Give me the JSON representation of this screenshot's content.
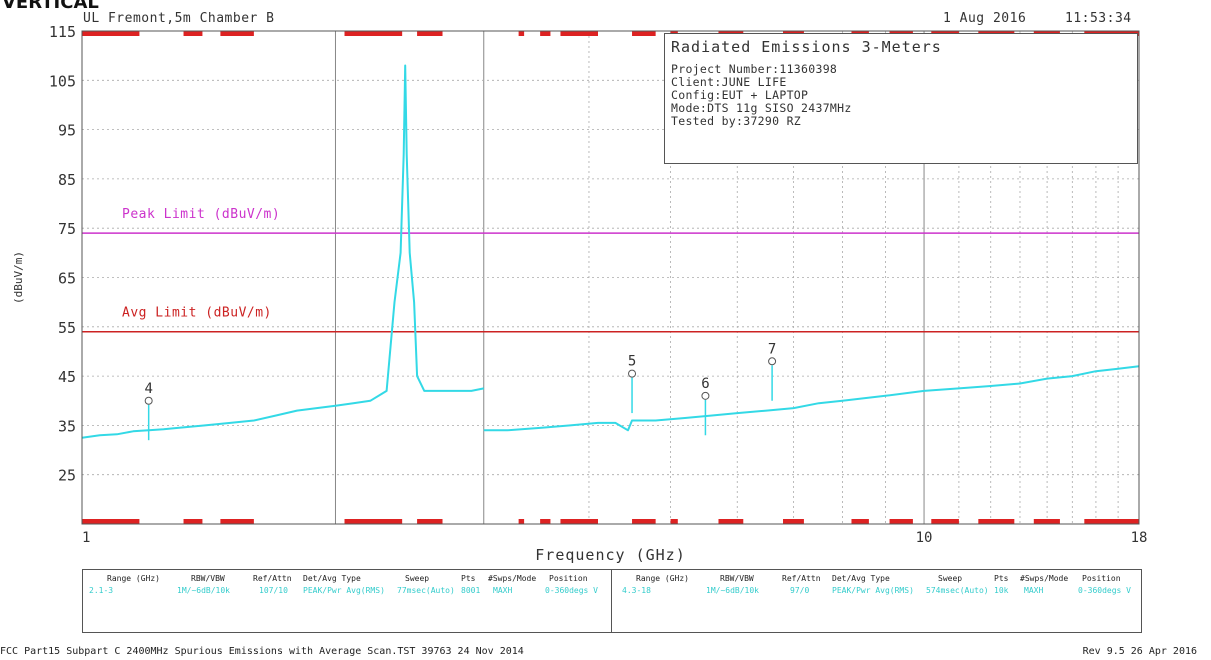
{
  "header": {
    "top_label": "VERTICAL",
    "location": "UL Fremont,5m Chamber B",
    "date": "1 Aug 2016",
    "time": "11:53:34"
  },
  "info_box": {
    "title": "Radiated Emissions 3-Meters",
    "project": "Project Number:11360398",
    "client": "Client:JUNE LIFE",
    "config": "Config:EUT + LAPTOP",
    "mode": "Mode:DTS 11g SISO 2437MHz",
    "tested_by": "Tested by:37290 RZ"
  },
  "chart_data": {
    "type": "line",
    "xscale": "log",
    "xlim": [
      1,
      18
    ],
    "ylim": [
      15,
      115
    ],
    "xlabel": "Frequency (GHz)",
    "ylabel": "(dBuV/m)",
    "yticks": [
      115,
      105,
      95,
      85,
      75,
      65,
      55,
      45,
      35,
      25
    ],
    "xtick_labels": [
      {
        "value": 1,
        "label": "1"
      },
      {
        "value": 10,
        "label": "10"
      },
      {
        "value": 18,
        "label": "18"
      }
    ],
    "colors": {
      "trace": "#33d9e6",
      "peak_limit": "#cc33cc",
      "avg_limit": "#cc2222",
      "scan_bar": "#dd2222",
      "grid": "#999999"
    },
    "limits": [
      {
        "name": "Peak Limit (dBuV/m)",
        "value": 74
      },
      {
        "name": "Avg Limit (dBuV/m)",
        "value": 54
      }
    ],
    "series": [
      {
        "points": [
          [
            1.0,
            32.5
          ],
          [
            1.05,
            33.0
          ],
          [
            1.1,
            33.2
          ],
          [
            1.15,
            33.8
          ],
          [
            1.2,
            34.0
          ],
          [
            1.25,
            34.2
          ],
          [
            1.3,
            34.5
          ],
          [
            1.4,
            35.0
          ],
          [
            1.5,
            35.5
          ],
          [
            1.6,
            36.0
          ],
          [
            1.7,
            37.0
          ],
          [
            1.8,
            38.0
          ],
          [
            1.9,
            38.5
          ],
          [
            2.0,
            39.0
          ],
          [
            2.1,
            39.5
          ],
          [
            2.2,
            40.0
          ],
          [
            2.3,
            42.0
          ],
          [
            2.35,
            60.0
          ],
          [
            2.39,
            70.0
          ],
          [
            2.41,
            90.0
          ],
          [
            2.42,
            108.0
          ],
          [
            2.43,
            90.0
          ],
          [
            2.45,
            70.0
          ],
          [
            2.48,
            60.0
          ],
          [
            2.5,
            45.0
          ],
          [
            2.55,
            42.0
          ],
          [
            2.7,
            42.0
          ],
          [
            2.9,
            42.0
          ],
          [
            3.0,
            42.5
          ]
        ]
      },
      {
        "points": [
          [
            3.0,
            34.0
          ],
          [
            3.2,
            34.0
          ],
          [
            3.5,
            34.5
          ],
          [
            3.8,
            35.0
          ],
          [
            4.1,
            35.5
          ],
          [
            4.3,
            35.5
          ],
          [
            4.45,
            34.0
          ],
          [
            4.5,
            36.0
          ],
          [
            4.8,
            36.0
          ],
          [
            5.2,
            36.5
          ],
          [
            5.6,
            37.0
          ],
          [
            6.0,
            37.5
          ],
          [
            6.5,
            38.0
          ],
          [
            7.0,
            38.5
          ],
          [
            7.5,
            39.5
          ],
          [
            8.0,
            40.0
          ],
          [
            9.0,
            41.0
          ],
          [
            10.0,
            42.0
          ],
          [
            11.0,
            42.5
          ],
          [
            12.0,
            43.0
          ],
          [
            13.0,
            43.5
          ],
          [
            14.0,
            44.5
          ],
          [
            15.0,
            45.0
          ],
          [
            16.0,
            46.0
          ],
          [
            17.0,
            46.5
          ],
          [
            18.0,
            47.0
          ]
        ]
      }
    ],
    "markers": [
      {
        "label": "4",
        "x": 1.2,
        "y": 40
      },
      {
        "label": "5",
        "x": 4.5,
        "y": 45.5
      },
      {
        "label": "6",
        "x": 5.5,
        "y": 41
      },
      {
        "label": "7",
        "x": 6.6,
        "y": 48
      }
    ],
    "scan_bars_top": [
      [
        1.0,
        1.17
      ],
      [
        1.32,
        1.39
      ],
      [
        1.46,
        1.6
      ],
      [
        2.05,
        2.4
      ],
      [
        2.5,
        2.68
      ],
      [
        3.3,
        3.35
      ],
      [
        3.5,
        3.6
      ],
      [
        3.7,
        4.1
      ],
      [
        4.5,
        4.8
      ],
      [
        5.0,
        5.1
      ],
      [
        5.7,
        6.1
      ],
      [
        6.8,
        7.2
      ],
      [
        8.2,
        8.6
      ],
      [
        9.1,
        9.7
      ],
      [
        10.2,
        11.0
      ],
      [
        11.6,
        12.8
      ],
      [
        13.5,
        14.5
      ],
      [
        15.5,
        18.0
      ]
    ],
    "scan_bars_bottom": [
      [
        1.0,
        1.17
      ],
      [
        1.32,
        1.39
      ],
      [
        1.46,
        1.6
      ],
      [
        2.05,
        2.4
      ],
      [
        2.5,
        2.68
      ],
      [
        3.3,
        3.35
      ],
      [
        3.5,
        3.6
      ],
      [
        3.7,
        4.1
      ],
      [
        4.5,
        4.8
      ],
      [
        5.0,
        5.1
      ],
      [
        5.7,
        6.1
      ],
      [
        6.8,
        7.2
      ],
      [
        8.2,
        8.6
      ],
      [
        9.1,
        9.7
      ],
      [
        10.2,
        11.0
      ],
      [
        11.6,
        12.8
      ],
      [
        13.5,
        14.5
      ],
      [
        15.5,
        18.0
      ]
    ]
  },
  "settings_table": {
    "headers": [
      "Range (GHz)",
      "RBW/VBW",
      "Ref/Attn",
      "Det/Avg Type",
      "Sweep",
      "Pts",
      "#Swps/Mode",
      "Position"
    ],
    "row_left": [
      "2.1-3",
      "1M/~6dB/10k",
      "107/10",
      "PEAK/Pwr Avg(RMS)",
      "77msec(Auto)",
      "8001",
      "MAXH",
      "0-360degs V"
    ],
    "row_right": [
      "4.3-18",
      "1M/~6dB/10k",
      "97/0",
      "PEAK/Pwr Avg(RMS)",
      "574msec(Auto)",
      "10k",
      "MAXH",
      "0-360degs V"
    ]
  },
  "footer": {
    "left": "FCC Part15 Subpart C 2400MHz Spurious Emissions with Average Scan.TST 39763 24 Nov 2014",
    "right": "Rev 9.5 26 Apr 2016"
  }
}
